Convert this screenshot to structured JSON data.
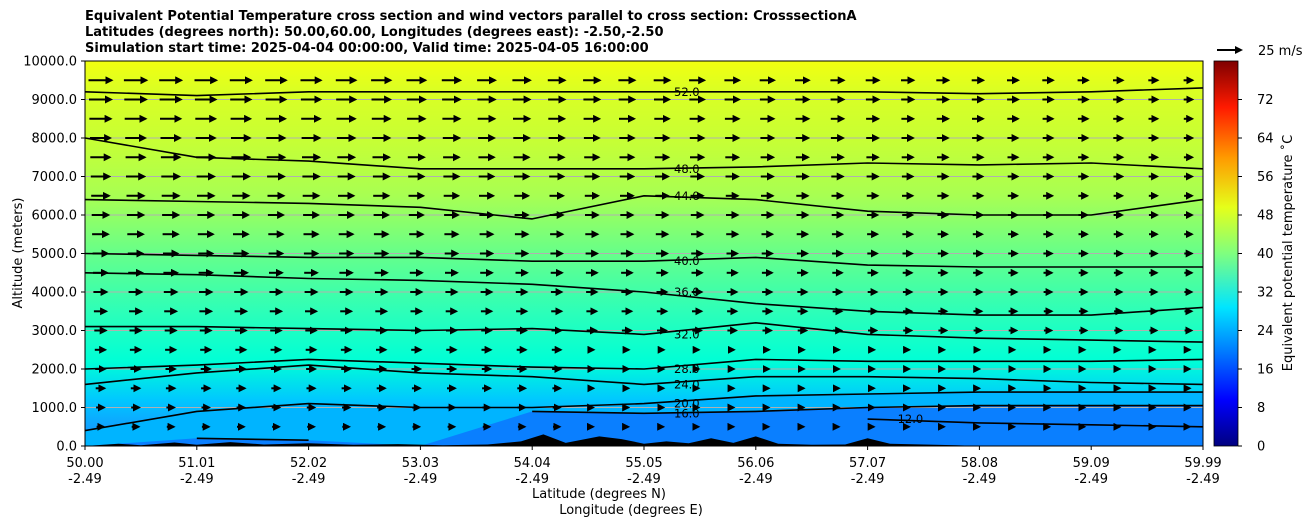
{
  "title": {
    "line1": "Equivalent Potential Temperature cross section and wind vectors parallel to cross section: CrosssectionA",
    "line2": "Latitudes (degrees north): 50.00,60.00, Longitudes (degrees east): -2.50,-2.50",
    "line3": "Simulation start time: 2025-04-04 00:00:00, Valid time: 2025-04-05 16:00:00"
  },
  "chart_data": {
    "type": "contourf_cross_section",
    "ylabel": "Altitude (meters)",
    "xlabel_line1": "Latitude (degrees N)",
    "xlabel_line2": "Longitude (degrees E)",
    "ylim": [
      0,
      10000
    ],
    "y_ticks": [
      "0.0",
      "1000.0",
      "2000.0",
      "3000.0",
      "4000.0",
      "5000.0",
      "6000.0",
      "7000.0",
      "8000.0",
      "9000.0",
      "10000.0"
    ],
    "x_ticks": [
      {
        "lat": "50.00",
        "lon": "-2.49"
      },
      {
        "lat": "51.01",
        "lon": "-2.49"
      },
      {
        "lat": "52.02",
        "lon": "-2.49"
      },
      {
        "lat": "53.03",
        "lon": "-2.49"
      },
      {
        "lat": "54.04",
        "lon": "-2.49"
      },
      {
        "lat": "55.05",
        "lon": "-2.49"
      },
      {
        "lat": "56.06",
        "lon": "-2.49"
      },
      {
        "lat": "57.07",
        "lon": "-2.49"
      },
      {
        "lat": "58.08",
        "lon": "-2.49"
      },
      {
        "lat": "59.09",
        "lon": "-2.49"
      },
      {
        "lat": "59.99",
        "lon": "-2.49"
      }
    ],
    "colorbar": {
      "label": "Equivalent potential temperature $^\\circ$C",
      "label_display": "Equivalent potential temperature ˚C",
      "min": 0,
      "max": 80,
      "ticks": [
        "0",
        "8",
        "16",
        "24",
        "32",
        "40",
        "48",
        "56",
        "64",
        "72"
      ]
    },
    "wind_key": {
      "label": "25 m/s"
    },
    "contours": [
      {
        "level": 12,
        "label": "12.0",
        "heights": [
          null,
          null,
          null,
          null,
          null,
          null,
          null,
          700,
          600,
          550,
          500
        ]
      },
      {
        "level": 16,
        "label": "16.0",
        "heights": [
          null,
          200,
          150,
          null,
          900,
          850,
          900,
          1000,
          1050,
          1050,
          1050
        ]
      },
      {
        "level": 20,
        "label": "20.0",
        "heights": [
          400,
          900,
          1100,
          1000,
          1000,
          1100,
          1300,
          1350,
          1400,
          1400,
          1400
        ]
      },
      {
        "level": 24,
        "label": "24.0",
        "heights": [
          1600,
          1900,
          2100,
          1900,
          1800,
          1600,
          1800,
          1800,
          1750,
          1650,
          1600
        ]
      },
      {
        "level": 28,
        "label": "28.0",
        "heights": [
          2000,
          2100,
          2250,
          2150,
          2050,
          2000,
          2250,
          2200,
          2200,
          2200,
          2250
        ]
      },
      {
        "level": 32,
        "label": "32.0",
        "heights": [
          3100,
          3100,
          3050,
          3000,
          3050,
          2900,
          3200,
          2900,
          2800,
          2750,
          2700
        ]
      },
      {
        "level": 36,
        "label": "36.0",
        "heights": [
          4500,
          4450,
          4350,
          4300,
          4200,
          4000,
          3700,
          3500,
          3400,
          3400,
          3600
        ]
      },
      {
        "level": 40,
        "label": "40.0",
        "heights": [
          5000,
          4950,
          4900,
          4900,
          4800,
          4800,
          4900,
          4700,
          4650,
          4650,
          4650
        ]
      },
      {
        "level": 44,
        "label": "44.0",
        "heights": [
          6400,
          6350,
          6300,
          6200,
          5900,
          6500,
          6400,
          6100,
          6000,
          6000,
          6400
        ]
      },
      {
        "level": 48,
        "label": "48.0",
        "heights": [
          8000,
          7500,
          7400,
          7200,
          7200,
          7200,
          7250,
          7350,
          7300,
          7350,
          7200
        ]
      },
      {
        "level": 52,
        "label": "52.0",
        "heights": [
          9200,
          9100,
          9200,
          9200,
          9200,
          9200,
          9200,
          9200,
          9150,
          9200,
          9300
        ]
      }
    ],
    "wind_rows_altitude": [
      500,
      1000,
      1500,
      2000,
      2500,
      3000,
      3500,
      4000,
      4500,
      5000,
      5500,
      6000,
      6500,
      7000,
      7500,
      8000,
      8500,
      9000,
      9500
    ],
    "terrain_note": "black terrain along surface"
  }
}
